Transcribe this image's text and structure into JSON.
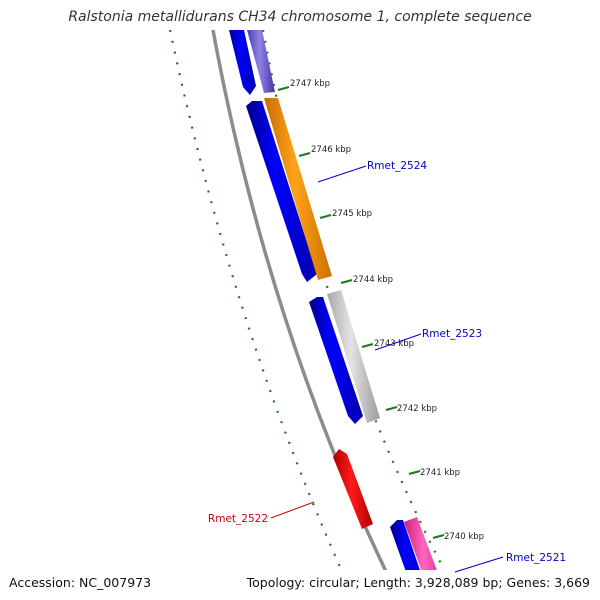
{
  "title": "Ralstonia metallidurans CH34 chromosome 1, complete sequence",
  "footer": {
    "accession": "Accession: NC_007973",
    "summary": "Topology: circular; Length: 3,928,089 bp; Genes: 3,669"
  },
  "colors": {
    "forward_strand": "#0000ee",
    "gene_orange": "#ff9500",
    "gene_gray": "#c8c8c8",
    "gene_red": "#ee0000",
    "gene_pink": "#ff3aa8",
    "gene_purple": "#7060d0",
    "backbone": "#8c8c8c",
    "ticks": "#1d7a1d",
    "label_blue": "#0000cc",
    "label_red": "#cc0000"
  },
  "ticks": [
    {
      "label": "2747 kbp"
    },
    {
      "label": "2746 kbp"
    },
    {
      "label": "2745 kbp"
    },
    {
      "label": "2744 kbp"
    },
    {
      "label": "2743 kbp"
    },
    {
      "label": "2742 kbp"
    },
    {
      "label": "2741 kbp"
    },
    {
      "label": "2740 kbp"
    }
  ],
  "gene_labels": [
    {
      "name": "Rmet_2524"
    },
    {
      "name": "Rmet_2523"
    },
    {
      "name": "Rmet_2522"
    },
    {
      "name": "Rmet_2521"
    }
  ]
}
